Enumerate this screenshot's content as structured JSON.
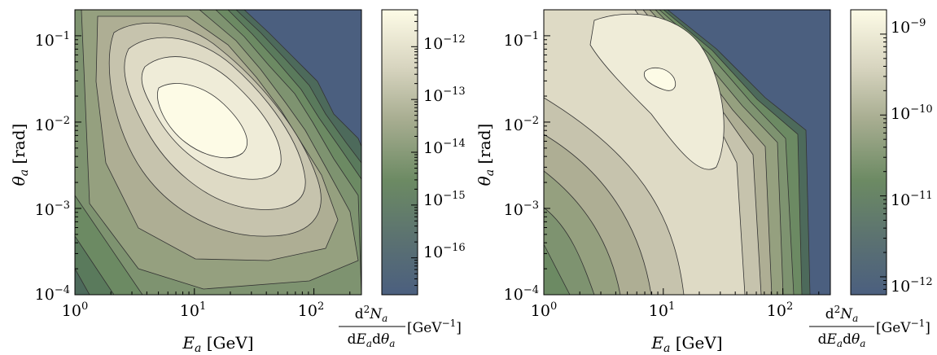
{
  "chart_data": [
    {
      "type": "heatmap",
      "title": "",
      "xlabel": "E_a [GeV]",
      "ylabel": "θ_a [rad]",
      "x_scale": "log",
      "y_scale": "log",
      "xlim": [
        1,
        250
      ],
      "ylim": [
        0.0001,
        0.2
      ],
      "x_ticks": [
        "10^0",
        "10^1",
        "10^2"
      ],
      "y_ticks": [
        "10^-4",
        "10^-3",
        "10^-2",
        "10^-1"
      ],
      "peak": {
        "E": 10,
        "theta": 0.01
      },
      "colorbar": {
        "label": "d²N_a / dE_a dθ_a [GeV^-1]",
        "scale": "log",
        "range": [
          2e-17,
          5e-12
        ],
        "ticks": [
          "10^-12",
          "10^-13",
          "10^-14",
          "10^-15",
          "10^-16"
        ]
      }
    },
    {
      "type": "heatmap",
      "title": "",
      "xlabel": "E_a [GeV]",
      "ylabel": "θ_a [rad]",
      "x_scale": "log",
      "y_scale": "log",
      "xlim": [
        1,
        250
      ],
      "ylim": [
        0.0001,
        0.2
      ],
      "x_ticks": [
        "10^0",
        "10^1",
        "10^2"
      ],
      "y_ticks": [
        "10^-4",
        "10^-3",
        "10^-2",
        "10^-1"
      ],
      "peak": {
        "E": 12,
        "theta": 0.035
      },
      "colorbar": {
        "label": "d²N_a / dE_a dθ_a [GeV^-1]",
        "scale": "log",
        "range": [
          6e-13,
          2e-09
        ],
        "ticks": [
          "10^-9",
          "10^-10",
          "10^-11",
          "10^-12"
        ]
      }
    }
  ],
  "colors": {
    "high": "#fdfbe6",
    "mid": "#b9b6a3",
    "low_green": "#6c8a63",
    "empty": "#4b5f7f"
  }
}
